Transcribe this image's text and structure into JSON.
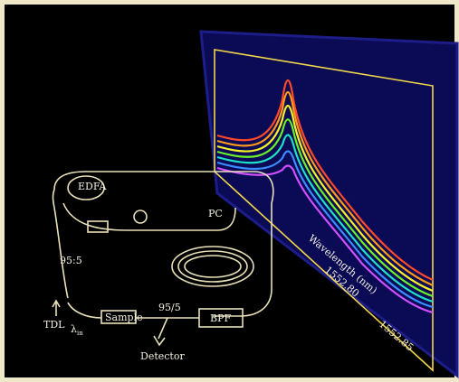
{
  "diagram": {
    "components": {
      "amplifier": "EDFA",
      "controller": "PC",
      "source": "TDL",
      "coupler_in": "95:5",
      "coupler_out": "95/5",
      "sample": "Sample",
      "filter": "BPF",
      "detector": "Detector"
    },
    "input": {
      "symbol": "λ",
      "subscript": "in"
    }
  },
  "plot": {
    "x_label": "Wavelength (nm)",
    "x_ticks": [
      "1552.80",
      "1552.85"
    ]
  }
}
